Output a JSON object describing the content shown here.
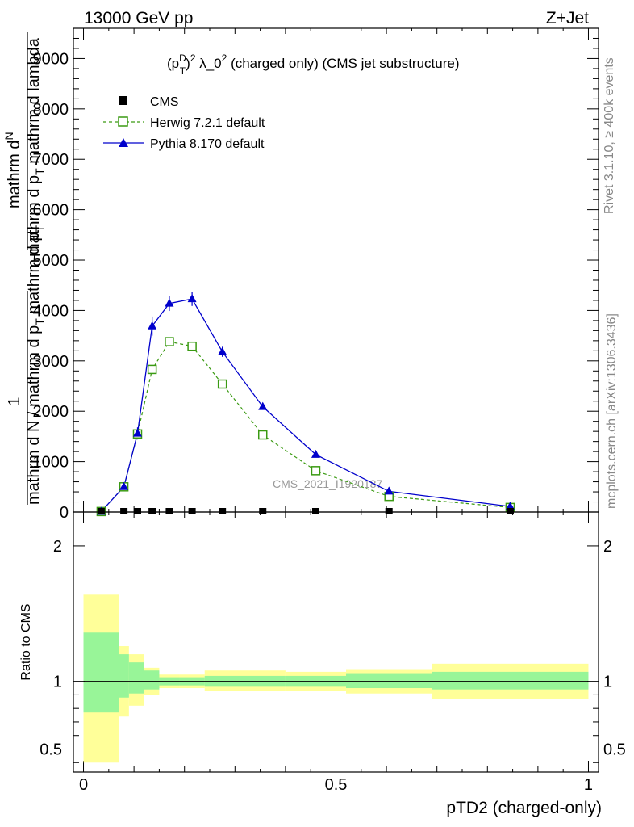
{
  "header": {
    "energy_label": "13000 GeV pp",
    "process_label": "Z+Jet"
  },
  "side": {
    "rivet_label": "Rivet 3.1.10, ≥ 400k events",
    "mcplots_label": "mcplots.cern.ch [arXiv:1306.3436]"
  },
  "watermark": "CMS_2021_I1920187",
  "title_main": "(charged only) (CMS jet substructure)",
  "title_prefix": "(p",
  "title_sup_D": "D",
  "title_sub_T": "T",
  "title_mid": ")",
  "title_sup_2a": "2",
  "title_lambda": " λ_0",
  "title_sup_2b": "2",
  "ylabel_top": {
    "numerator_one": "1",
    "denominator": "mathrm d N / mathrm d p",
    "denominator_sub": "T",
    "denominator_tail": " mathrm d p",
    "denominator_sub2": "T",
    "fraction_num": "mathrm d",
    "fraction_num2": "N",
    "fraction_den": "mathrm d p",
    "fraction_den_sub": "T",
    "fraction_den_tail": " mathrm d lambda"
  },
  "ylabel_ratio": "Ratio to CMS",
  "xlabel": "pTD2 (charged-only)",
  "legend": [
    {
      "name": "CMS",
      "color": "#000000",
      "marker": "square-filled"
    },
    {
      "name": "Herwig 7.2.1 default",
      "color": "#3a9a12",
      "marker": "square-open"
    },
    {
      "name": "Pythia 8.170 default",
      "color": "#0000cc",
      "marker": "triangle-filled"
    }
  ],
  "chart_data": {
    "type": "line",
    "title": "(p_T^D)^2 λ_0^2 (charged only) (CMS jet substructure)",
    "xlabel": "pTD2 (charged-only)",
    "ylabel": "1 / mathrm d N / mathrm d p_T mathrm d p_T  · mathrm d^2N / mathrm d p_T mathrm d lambda",
    "xlim": [
      -0.02,
      1.02
    ],
    "ylim": [
      0,
      9600
    ],
    "yticks_major": [
      0,
      1000,
      2000,
      3000,
      4000,
      5000,
      6000,
      7000,
      8000,
      9000
    ],
    "ytick_labels": [
      "0",
      "1000",
      "2000",
      "3000",
      "4000",
      "5000",
      "6000",
      "7000",
      "8000",
      "9000"
    ],
    "xticks_major": [
      0,
      0.5,
      1
    ],
    "xtick_labels": [
      "0",
      "0.5",
      "1"
    ],
    "series": [
      {
        "name": "CMS",
        "x": [
          0.035,
          0.08,
          0.107,
          0.136,
          0.17,
          0.215,
          0.275,
          0.355,
          0.46,
          0.605,
          0.845
        ],
        "values": [
          0,
          0,
          0,
          0,
          0,
          0,
          0,
          0,
          0,
          0,
          0
        ]
      },
      {
        "name": "Herwig 7.2.1 default",
        "x": [
          0.035,
          0.08,
          0.107,
          0.136,
          0.17,
          0.215,
          0.275,
          0.355,
          0.46,
          0.605,
          0.845
        ],
        "values": [
          10,
          500,
          1550,
          2830,
          3380,
          3290,
          2540,
          1530,
          820,
          310,
          90
        ],
        "errors": [
          5,
          40,
          60,
          80,
          70,
          60,
          60,
          40,
          30,
          20,
          10
        ]
      },
      {
        "name": "Pythia 8.170 default",
        "x": [
          0.035,
          0.08,
          0.107,
          0.136,
          0.17,
          0.215,
          0.275,
          0.355,
          0.46,
          0.605,
          0.845
        ],
        "values": [
          10,
          500,
          1560,
          3690,
          4140,
          4230,
          3180,
          2090,
          1140,
          410,
          110
        ],
        "errors": [
          5,
          60,
          120,
          190,
          150,
          140,
          100,
          60,
          40,
          25,
          15
        ]
      }
    ],
    "ratio": {
      "ylabel": "Ratio to CMS",
      "ylim": [
        0.33,
        2.25
      ],
      "yticks_major": [
        0.5,
        1,
        2
      ],
      "ytick_labels": [
        "0.5",
        "1",
        "2"
      ],
      "band_edges": [
        0,
        0.07,
        0.09,
        0.12,
        0.15,
        0.19,
        0.24,
        0.31,
        0.4,
        0.52,
        0.69,
        1.0
      ],
      "inner_band": [
        [
          0.77,
          1.36
        ],
        [
          0.88,
          1.2
        ],
        [
          0.91,
          1.14
        ],
        [
          0.94,
          1.08
        ],
        [
          0.97,
          1.03
        ],
        [
          0.97,
          1.03
        ],
        [
          0.96,
          1.04
        ],
        [
          0.96,
          1.04
        ],
        [
          0.96,
          1.04
        ],
        [
          0.95,
          1.06
        ],
        [
          0.94,
          1.07
        ]
      ],
      "outer_band": [
        [
          0.4,
          1.64
        ],
        [
          0.74,
          1.26
        ],
        [
          0.82,
          1.2
        ],
        [
          0.9,
          1.1
        ],
        [
          0.95,
          1.05
        ],
        [
          0.95,
          1.05
        ],
        [
          0.93,
          1.08
        ],
        [
          0.93,
          1.08
        ],
        [
          0.93,
          1.07
        ],
        [
          0.91,
          1.09
        ],
        [
          0.87,
          1.13
        ]
      ]
    }
  },
  "colors": {
    "inner_band": "#98f598",
    "outer_band": "#ffff99",
    "cms": "#000000",
    "herwig": "#3a9a12",
    "pythia": "#0000cc"
  }
}
